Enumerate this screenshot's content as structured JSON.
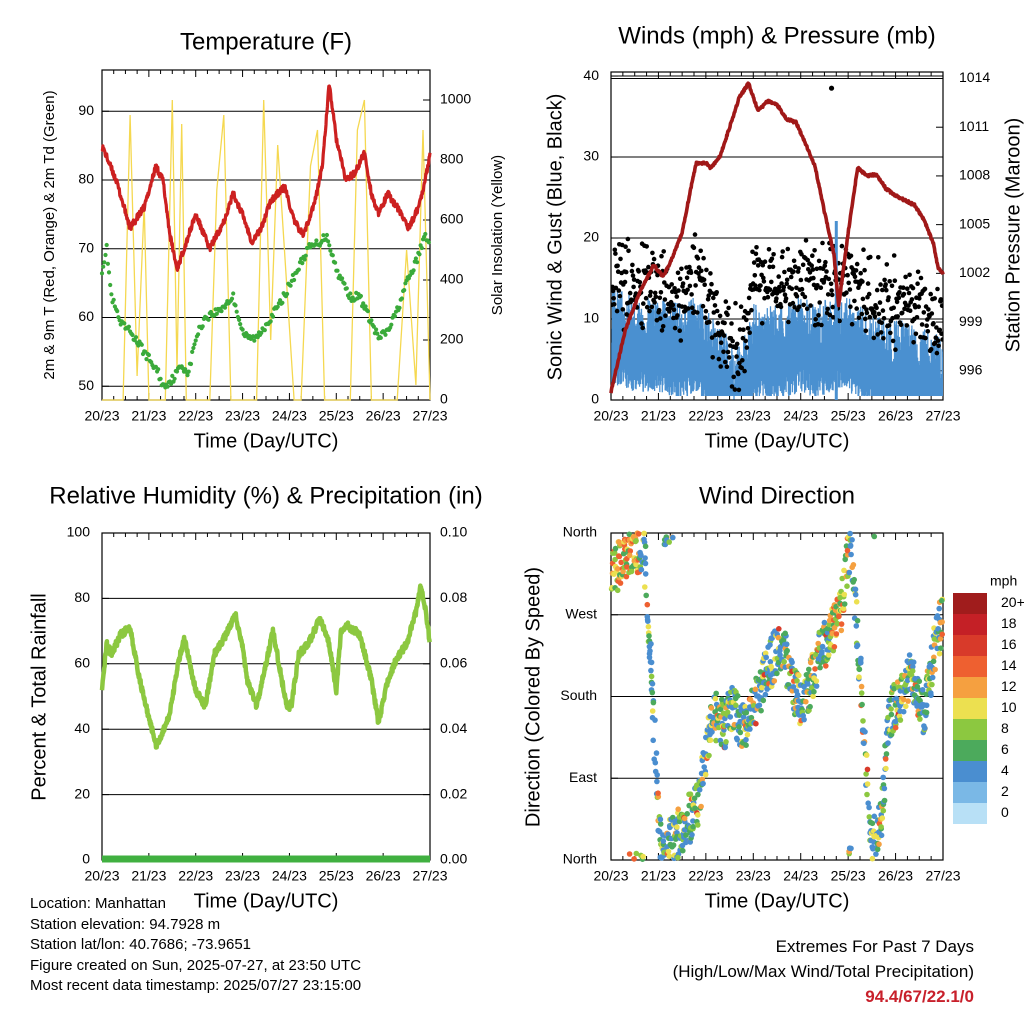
{
  "info": {
    "location": "Location: Manhattan",
    "elevation": "Station elevation: 94.7928 m",
    "latlon": "Station lat/lon: 40.7686; -73.9651",
    "created": "Figure created on Sun, 2025-07-27, at 23:50 UTC",
    "recent": "Most recent data timestamp: 2025/07/27 23:15:00"
  },
  "extremes": {
    "title": "Extremes For Past 7 Days",
    "subtitle": "(High/Low/Max Wind/Total Precipitation)",
    "values": "94.4/67/22.1/0"
  },
  "colors": {
    "temp": "#cc2020",
    "dew": "#3aaa3a",
    "solar": "#f5d850",
    "gust": "#000000",
    "wind": "#4a90d0",
    "pressure": "#a01818",
    "rh": "#8cc840",
    "precip": "#40b040",
    "grid": "#000000"
  },
  "days": [
    "20/23",
    "21/23",
    "22/23",
    "23/23",
    "24/23",
    "25/23",
    "26/23",
    "27/23"
  ],
  "chart_data": [
    {
      "type": "line",
      "title": "Temperature (F)",
      "xlabel": "Time (Day/UTC)",
      "ylabel": "2m & 9m T (Red, Orange) & 2m Td (Green)",
      "y2label": "Solar Insolation (Yellow)",
      "ylim": [
        48,
        96
      ],
      "y2lim": [
        0,
        1100
      ],
      "yticks": [
        50,
        60,
        70,
        80,
        90
      ],
      "y2ticks": [
        0,
        200,
        400,
        600,
        800,
        1000
      ],
      "grid": true,
      "series": [
        {
          "axis": "left",
          "x": [
            0,
            0.3,
            0.6,
            0.9,
            1.15,
            1.3,
            1.45,
            1.6,
            1.8,
            2.0,
            2.3,
            2.6,
            2.8,
            3.0,
            3.2,
            3.4,
            3.6,
            3.9,
            4.1,
            4.3,
            4.55,
            4.7,
            4.85,
            5.0,
            5.2,
            5.4,
            5.6,
            5.75,
            5.9,
            6.1,
            6.3,
            6.55,
            6.75,
            6.9,
            7.0
          ],
          "y": [
            85,
            80,
            73,
            76,
            82,
            80,
            72,
            67,
            71,
            75,
            70,
            74,
            78,
            75,
            71,
            73,
            77,
            79,
            74,
            72,
            77,
            82,
            94,
            86,
            80,
            81,
            84,
            78,
            75,
            78,
            76,
            73,
            76,
            80,
            84
          ]
        },
        {
          "axis": "left",
          "x": [
            0,
            0.1,
            0.2,
            0.4,
            0.6,
            0.8,
            1.0,
            1.2,
            1.3,
            1.5,
            1.7,
            1.85,
            2.0,
            2.2,
            2.5,
            2.8,
            3.0,
            3.1,
            3.3,
            3.5,
            3.8,
            4.1,
            4.4,
            4.65,
            4.8,
            5.0,
            5.3,
            5.5,
            5.7,
            5.9,
            6.1,
            6.3,
            6.5,
            6.7,
            6.9,
            7.0
          ],
          "y": [
            67,
            70,
            63,
            59,
            58,
            56,
            54,
            52,
            50,
            51,
            53,
            52,
            57,
            60,
            61,
            63,
            58,
            57,
            57,
            59,
            62,
            66,
            70,
            71,
            72,
            67,
            63,
            63,
            60,
            57,
            58,
            61,
            65,
            68,
            72,
            71
          ]
        },
        {
          "axis": "right",
          "x": [
            0,
            0.45,
            0.6,
            0.75,
            0.9,
            1.0,
            1.35,
            1.5,
            1.6,
            1.7,
            1.8,
            2.05,
            2.3,
            2.45,
            2.6,
            2.75,
            3.05,
            3.3,
            3.45,
            3.6,
            3.75,
            4.1,
            4.25,
            4.45,
            4.6,
            4.75,
            5.1,
            5.3,
            5.45,
            5.6,
            5.75,
            6.0,
            6.3,
            6.5,
            6.7,
            6.85,
            7.0
          ],
          "y": [
            0,
            0,
            950,
            80,
            650,
            0,
            0,
            1000,
            100,
            920,
            0,
            0,
            0,
            700,
            950,
            0,
            0,
            0,
            1000,
            200,
            850,
            0,
            0,
            780,
            900,
            0,
            0,
            0,
            900,
            1000,
            0,
            0,
            0,
            500,
            50,
            900,
            0
          ]
        }
      ]
    },
    {
      "type": "scatter",
      "title": "Winds (mph) & Pressure (mb)",
      "xlabel": "Time (Day/UTC)",
      "ylabel": "Sonic Wind & Gust (Blue, Black)",
      "y2label": "Station Pressure (Maroon)",
      "ylim": [
        0,
        40.5
      ],
      "y2lim": [
        994.2,
        1014.4
      ],
      "yticks": [
        0,
        10,
        20,
        30,
        40
      ],
      "y2ticks": [
        996,
        999,
        1002,
        1005,
        1008,
        1011,
        1014
      ],
      "grid": true,
      "gust_outlier": {
        "x": 4.65,
        "y": 38.5
      },
      "max_wind": {
        "x": 4.75,
        "y": 22.1
      },
      "series": [
        {
          "name": "gust",
          "x": [
            0,
            0.5,
            1.0,
            1.5,
            1.8,
            2.2,
            2.6,
            2.8,
            3.0,
            3.3,
            3.6,
            4.0,
            4.3,
            4.7,
            5.0,
            5.4,
            5.8,
            6.2,
            6.6,
            7.0
          ],
          "y": [
            15,
            14,
            14,
            13,
            15,
            10,
            6,
            8,
            15,
            14,
            14,
            15,
            14,
            14,
            15,
            13,
            12,
            12,
            11,
            8
          ]
        },
        {
          "name": "wind",
          "x": [
            0,
            0.5,
            1.0,
            1.5,
            1.8,
            2.2,
            2.6,
            2.8,
            3.0,
            3.3,
            3.6,
            4.0,
            4.3,
            4.7,
            5.0,
            5.4,
            5.8,
            6.2,
            6.6,
            7.0
          ],
          "y": [
            9,
            8,
            8,
            7,
            8,
            5,
            2,
            3,
            7,
            7,
            7,
            8,
            7,
            8,
            8,
            6,
            5,
            5,
            4,
            3
          ]
        },
        {
          "name": "pressure",
          "axis": "right",
          "x": [
            0,
            0.3,
            0.6,
            0.9,
            1.1,
            1.3,
            1.5,
            1.7,
            1.8,
            2.0,
            2.1,
            2.3,
            2.5,
            2.7,
            2.9,
            3.1,
            3.3,
            3.5,
            3.7,
            3.9,
            4.1,
            4.3,
            4.5,
            4.7,
            4.8,
            5.0,
            5.2,
            5.4,
            5.6,
            5.8,
            6.0,
            6.2,
            6.4,
            6.6,
            6.8,
            6.9,
            7.0
          ],
          "y": [
            994.7,
            998.5,
            1000.8,
            1002.5,
            1001.8,
            1003,
            1004.5,
            1007.5,
            1008.8,
            1008.8,
            1008.5,
            1009.2,
            1011,
            1012.8,
            1013.7,
            1012,
            1012.6,
            1012.4,
            1011.5,
            1011.3,
            1010,
            1008.6,
            1005.8,
            1003.2,
            1000,
            1004.5,
            1008.5,
            1008,
            1008.1,
            1007.2,
            1006.8,
            1006.5,
            1006.2,
            1005.3,
            1003.8,
            1002.3,
            1002
          ]
        }
      ]
    },
    {
      "type": "line",
      "title": "Relative Humidity (%) & Precipitation (in)",
      "xlabel": "Time (Day/UTC)",
      "ylabel": "Percent & Total Rainfall",
      "ylim": [
        0,
        100
      ],
      "y2lim": [
        0,
        0.1
      ],
      "yticks": [
        0,
        20,
        40,
        60,
        80,
        100
      ],
      "y2ticks": [
        "0.00",
        "0.02",
        "0.04",
        "0.06",
        "0.08",
        "0.10"
      ],
      "grid": true,
      "series": [
        {
          "name": "rh",
          "x": [
            0,
            0.1,
            0.2,
            0.4,
            0.6,
            0.75,
            0.9,
            1.05,
            1.15,
            1.3,
            1.45,
            1.6,
            1.75,
            2.0,
            2.2,
            2.4,
            2.65,
            2.85,
            3.0,
            3.1,
            3.3,
            3.5,
            3.65,
            3.8,
            3.95,
            4.05,
            4.2,
            4.4,
            4.65,
            4.85,
            5.0,
            5.1,
            5.2,
            5.5,
            5.75,
            5.9,
            6.1,
            6.3,
            6.5,
            6.7,
            6.8,
            6.9,
            7.0
          ],
          "y": [
            53,
            66,
            63,
            69,
            71,
            59,
            49,
            41,
            35,
            39,
            45,
            58,
            68,
            52,
            47,
            63,
            69,
            75,
            65,
            55,
            47,
            60,
            70,
            58,
            46,
            48,
            63,
            66,
            74,
            66,
            52,
            70,
            72,
            69,
            55,
            42,
            55,
            62,
            66,
            76,
            84,
            77,
            66
          ]
        },
        {
          "name": "precip",
          "x": [
            0,
            7
          ],
          "y": [
            0,
            0
          ]
        }
      ]
    },
    {
      "type": "scatter",
      "title": "Wind Direction",
      "xlabel": "Time (Day/UTC)",
      "ylabel": "Direction (Colored By Speed)",
      "ylim": [
        0,
        360
      ],
      "yticks": [
        "North",
        "East",
        "South",
        "West",
        "North"
      ],
      "colorbar": {
        "unit": "mph",
        "labels": [
          "20+",
          "18",
          "16",
          "14",
          "12",
          "10",
          "8",
          "6",
          "4",
          "2",
          "0"
        ],
        "colors": [
          "#a01c1c",
          "#c42026",
          "#d83a2a",
          "#ee6030",
          "#f5a040",
          "#ece050",
          "#8cc840",
          "#4caa5c",
          "#4a8ed0",
          "#7ab8e6",
          "#b8e0f6"
        ]
      },
      "series": [
        {
          "name": "direction",
          "x": [
            0.1,
            0.4,
            0.7,
            1.05,
            1.3,
            1.55,
            1.8,
            2.15,
            2.4,
            2.55,
            2.75,
            2.95,
            3.2,
            3.35,
            3.6,
            3.85,
            4.05,
            4.35,
            4.6,
            4.85,
            5.05,
            5.5,
            5.7,
            5.85,
            6.05,
            6.3,
            6.6,
            6.85,
            6.95
          ],
          "y": [
            320,
            340,
            345,
            10,
            20,
            40,
            55,
            160,
            150,
            170,
            145,
            160,
            195,
            215,
            240,
            185,
            170,
            220,
            250,
            275,
            355,
            15,
            40,
            160,
            170,
            200,
            165,
            240,
            260
          ]
        }
      ]
    }
  ]
}
